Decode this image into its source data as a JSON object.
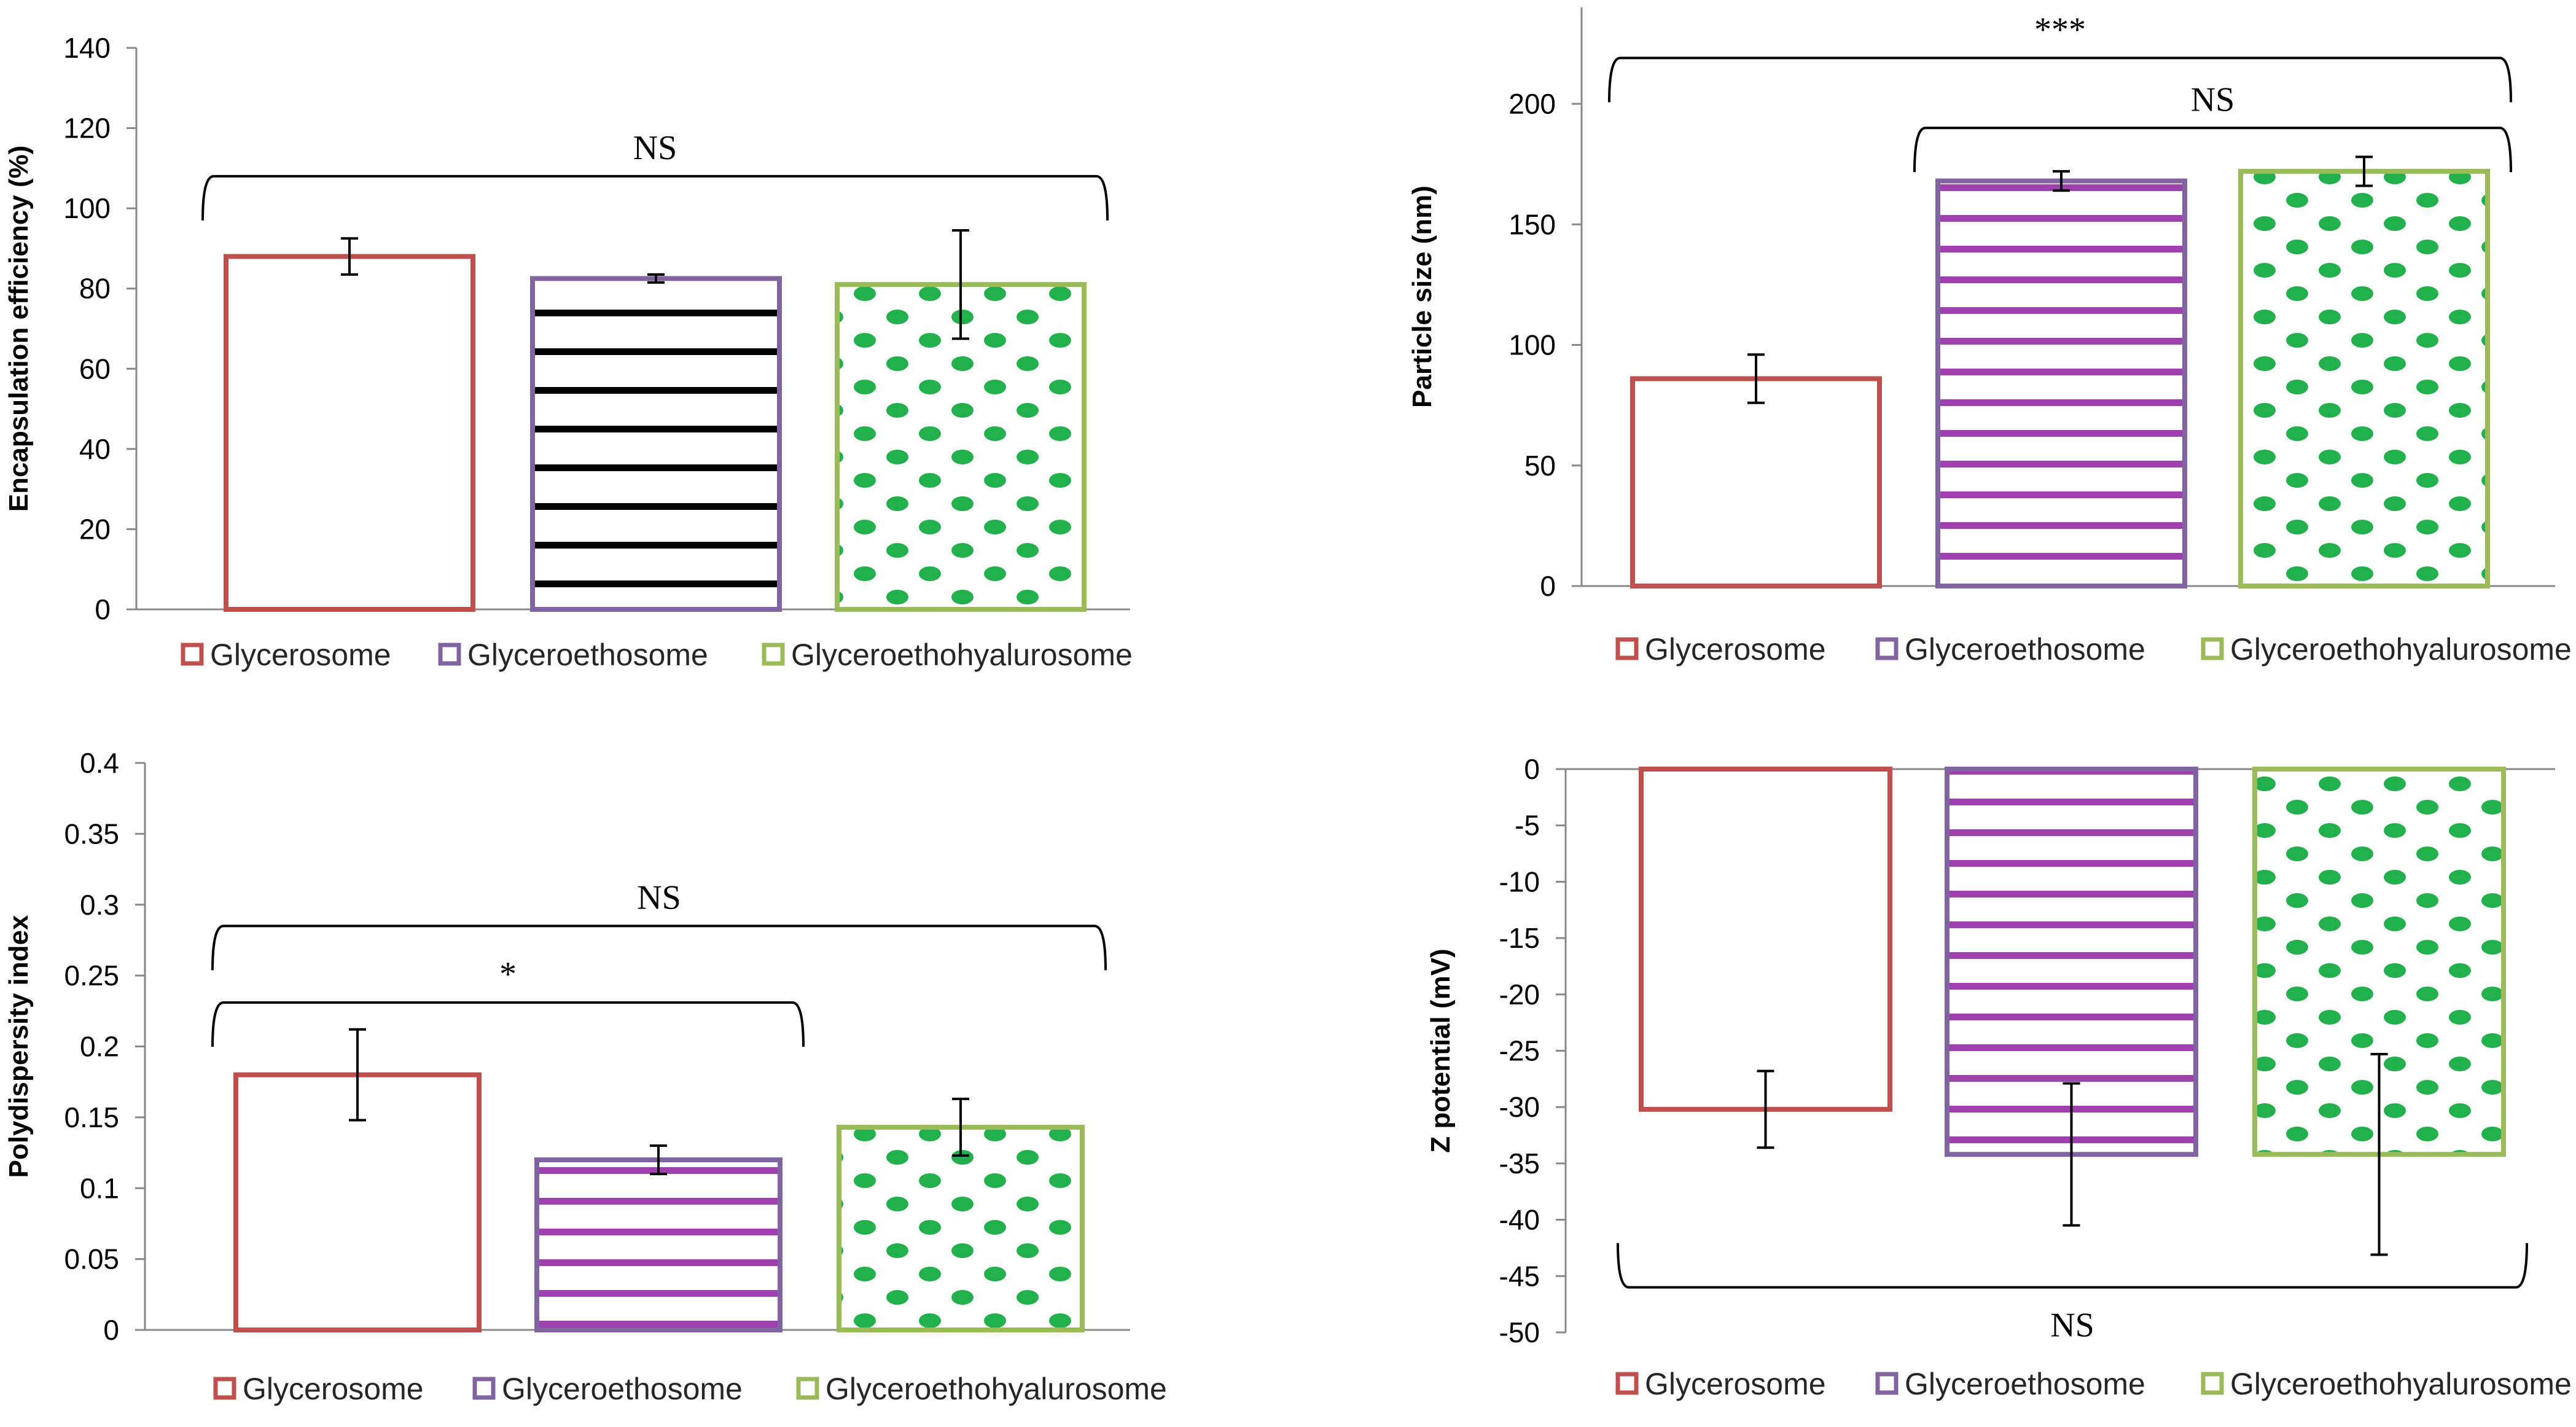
{
  "legend_labels": [
    "Glycerosome",
    "Glyceroethosome",
    "Glyceroethohyalurosome"
  ],
  "series_colors": {
    "Glycerosome": "#C0504D",
    "Glyceroethosome": "#8064A2",
    "Glyceroethohyalurosome": "#9BBB59"
  },
  "pattern_colors": {
    "black_stripes": "#000000",
    "purple_stripes": "#A040B0",
    "green_dots": "#22B04C"
  },
  "chart_data": [
    {
      "id": "ee",
      "type": "bar",
      "title": "",
      "xlabel": "",
      "ylabel": "Encapsulation efficiency (%)",
      "ylim": [
        0,
        140
      ],
      "yticks": [
        "0",
        "20",
        "40",
        "60",
        "80",
        "100",
        "120",
        "140"
      ],
      "categories": [
        "Glycerosome",
        "Glyceroethosome",
        "Glyceroethohyalurosome"
      ],
      "values": [
        88,
        82.5,
        81
      ],
      "errors": [
        4.5,
        1,
        13.5
      ],
      "patterns": [
        "none",
        "black_stripes",
        "green_dots"
      ],
      "annotations": [
        {
          "text": "NS",
          "from": 0,
          "to": 2,
          "y": 108
        }
      ],
      "legend": "bottom"
    },
    {
      "id": "ps",
      "type": "bar",
      "title": "",
      "xlabel": "",
      "ylabel": "Particle size  (nm)",
      "ylim": [
        0,
        240
      ],
      "yticks": [
        "0",
        "50",
        "100",
        "150",
        "200"
      ],
      "ytick_values": [
        0,
        50,
        100,
        150,
        200
      ],
      "categories": [
        "Glycerosome",
        "Glyceroethosome",
        "Glyceroethohyalurosome"
      ],
      "values": [
        86,
        168,
        172
      ],
      "errors": [
        10,
        4,
        6
      ],
      "patterns": [
        "none",
        "purple_stripes",
        "green_dots"
      ],
      "annotations": [
        {
          "text": "***",
          "from": 0,
          "to": 2,
          "y": 219
        },
        {
          "text": "NS",
          "from": 1,
          "to": 2,
          "y": 190
        }
      ],
      "legend": "bottom"
    },
    {
      "id": "pdi",
      "type": "bar",
      "title": "",
      "xlabel": "",
      "ylabel": "Polydispersity index",
      "ylim": [
        0,
        0.4
      ],
      "yticks": [
        "0",
        "0.05",
        "0.1",
        "0.15",
        "0.2",
        "0.25",
        "0.3",
        "0.35",
        "0.4"
      ],
      "categories": [
        "Glycerosome",
        "Glyceroethosome",
        "Glyceroethohyalurosome"
      ],
      "values": [
        0.18,
        0.12,
        0.143
      ],
      "errors": [
        0.032,
        0.01,
        0.02
      ],
      "patterns": [
        "none",
        "purple_stripes",
        "green_dots"
      ],
      "annotations": [
        {
          "text": "NS",
          "from": 0,
          "to": 2,
          "y": 0.285
        },
        {
          "text": "*",
          "from": 0,
          "to": 1,
          "y": 0.231
        }
      ],
      "legend": "bottom"
    },
    {
      "id": "zp",
      "type": "bar",
      "title": "",
      "xlabel": "",
      "ylabel": "Z potential (mV)",
      "ylim": [
        -50,
        0
      ],
      "yticks": [
        "0",
        "-5",
        "-10",
        "-15",
        "-20",
        "-25",
        "-30",
        "-35",
        "-40",
        "-45",
        "-50"
      ],
      "categories": [
        "Glycerosome",
        "Glyceroethosome",
        "Glyceroethohyalurosome"
      ],
      "values": [
        -30.2,
        -34.2,
        -34.2
      ],
      "errors": [
        3.4,
        6.3,
        8.9
      ],
      "patterns": [
        "none",
        "purple_stripes",
        "green_dots"
      ],
      "annotations": [
        {
          "text": "NS",
          "from": 0,
          "to": 2,
          "y": -46,
          "below": true
        }
      ],
      "legend": "bottom"
    }
  ]
}
